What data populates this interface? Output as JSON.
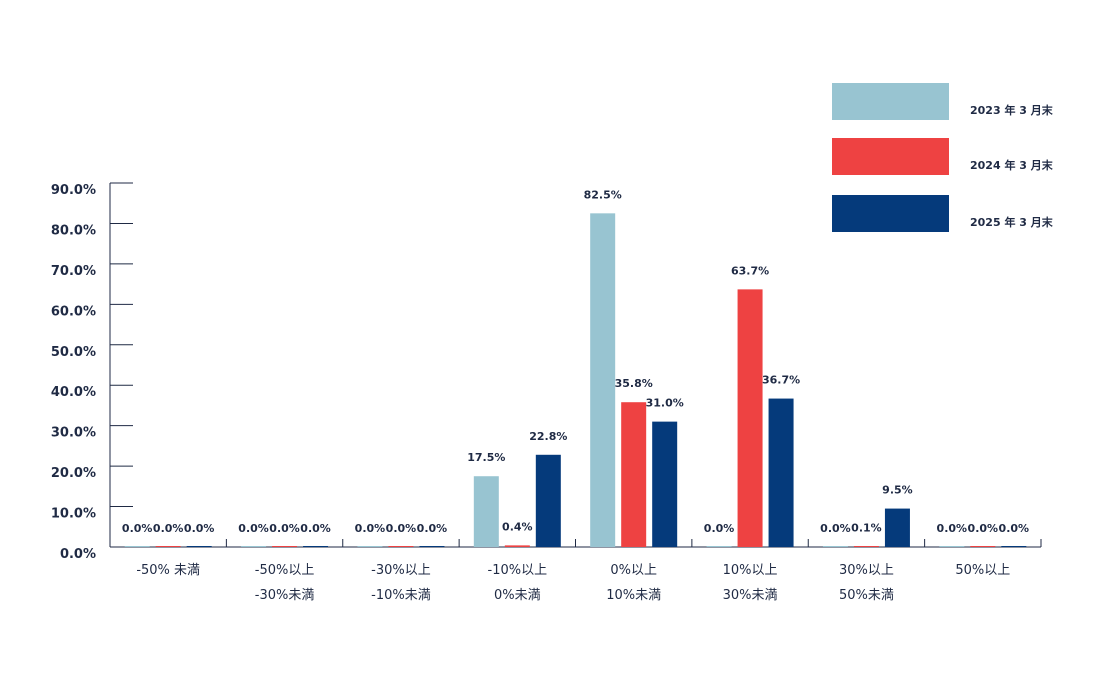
{
  "chart_data": {
    "type": "bar",
    "categories": [
      [
        "-50% 未満"
      ],
      [
        "-50%以上",
        "-30%未満"
      ],
      [
        "-30%以上",
        "-10%未満"
      ],
      [
        "-10%以上",
        "0%未満"
      ],
      [
        "0%以上",
        "10%未満"
      ],
      [
        "10%以上",
        "30%未満"
      ],
      [
        "30%以上",
        "50%未満"
      ],
      [
        "50%以上"
      ]
    ],
    "series": [
      {
        "name": "2023 年 3 月末",
        "color": "#98c4d1",
        "values": [
          0.0,
          0.0,
          0.0,
          17.5,
          82.5,
          0.0,
          0.0,
          0.0
        ],
        "labels": [
          "0.0%",
          "0.0%",
          "0.0%",
          "17.5%",
          "82.5%",
          "0.0%",
          "0.0%",
          "0.0%"
        ]
      },
      {
        "name": "2024 年 3 月末",
        "color": "#ee4242",
        "values": [
          0.0,
          0.0,
          0.0,
          0.4,
          35.8,
          63.7,
          0.1,
          0.0
        ],
        "labels": [
          "0.0%",
          "0.0%",
          "0.0%",
          "0.4%",
          "35.8%",
          "63.7%",
          "0.1%",
          "0.0%"
        ]
      },
      {
        "name": "2025 年 3 月末",
        "color": "#053a7b",
        "values": [
          0.0,
          0.0,
          0.0,
          22.8,
          31.0,
          36.7,
          9.5,
          0.0
        ],
        "labels": [
          "0.0%",
          "0.0%",
          "0.0%",
          "22.8%",
          "31.0%",
          "36.7%",
          "9.5%",
          "0.0%"
        ]
      }
    ],
    "yticks": [
      "0.0%",
      "10.0%",
      "20.0%",
      "30.0%",
      "40.0%",
      "50.0%",
      "60.0%",
      "70.0%",
      "80.0%",
      "90.0%"
    ],
    "ylim": [
      0,
      90
    ],
    "grid": false,
    "legend_position": "top-right"
  }
}
